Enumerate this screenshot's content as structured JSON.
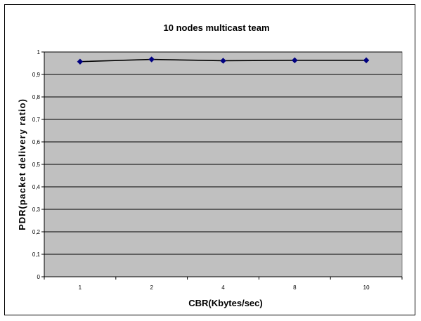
{
  "chart_data": {
    "type": "line",
    "title": "10 nodes multicast team",
    "xlabel": "CBR(Kbytes/sec)",
    "ylabel": "PDR(packet delivery ratio)",
    "categories": [
      "1",
      "2",
      "4",
      "8",
      "10"
    ],
    "series": [
      {
        "values": [
          0.957,
          0.967,
          0.961,
          0.963,
          0.963
        ]
      }
    ],
    "ylim": [
      0,
      1
    ],
    "yticks": [
      "0",
      "0,1",
      "0,2",
      "0,3",
      "0,4",
      "0,5",
      "0,6",
      "0,7",
      "0,8",
      "0,9",
      "1"
    ],
    "grid": true,
    "legend": "none",
    "colors": {
      "plot_background": "#c0c0c0",
      "gridline": "#000000",
      "line": "#000000",
      "marker": "#000080"
    }
  }
}
